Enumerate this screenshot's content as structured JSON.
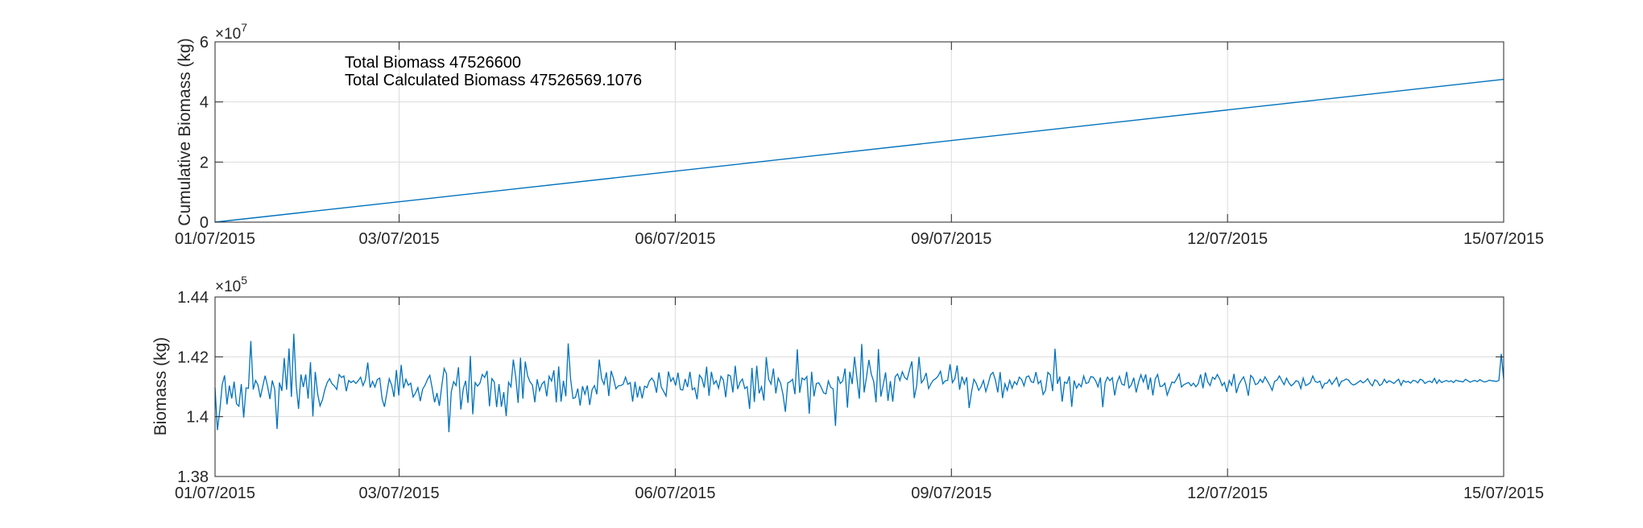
{
  "colors": {
    "line": "#0072BD",
    "axis": "#262626",
    "grid": "#dcdcdc"
  },
  "x_ticks": [
    "01/07/2015",
    "03/07/2015",
    "06/07/2015",
    "09/07/2015",
    "12/07/2015",
    "15/07/2015"
  ],
  "chart_data": [
    {
      "type": "line",
      "ylabel": "Cumulative Biomass (kg)",
      "y_exponent": "×10",
      "y_exponent_power": "7",
      "yticks": [
        "0",
        "2",
        "4",
        "6"
      ],
      "ylim": [
        0,
        6
      ],
      "xlim": [
        "01/07/2015",
        "15/07/2015"
      ],
      "grid": true,
      "annotations": [
        "Total Biomass 47526600",
        "Total Calculated Biomass 47526569.1076"
      ],
      "series": [
        {
          "x": [
            "01/07/2015",
            "15/07/2015"
          ],
          "y": [
            0,
            4.75266
          ]
        }
      ]
    },
    {
      "type": "line",
      "ylabel": "Biomass (kg)",
      "y_exponent": "×10",
      "y_exponent_power": "5",
      "yticks": [
        "1.38",
        "1.4",
        "1.42",
        "1.44"
      ],
      "ylim": [
        1.38,
        1.44
      ],
      "xlim": [
        "01/07/2015",
        "15/07/2015"
      ],
      "grid": true,
      "y_values": [
        1.4097,
        1.3955,
        1.4021,
        1.4107,
        1.4138,
        1.4041,
        1.4104,
        1.4061,
        1.4117,
        1.4043,
        1.4035,
        1.4109,
        1.3997,
        1.4096,
        1.4095,
        1.4253,
        1.4091,
        1.4121,
        1.4105,
        1.4064,
        1.4102,
        1.4137,
        1.4102,
        1.4059,
        1.4121,
        1.4091,
        1.3959,
        1.4114,
        1.4086,
        1.4196,
        1.409,
        1.4228,
        1.4066,
        1.4277,
        1.4106,
        1.4026,
        1.4141,
        1.4099,
        1.4141,
        1.406,
        1.4182,
        1.4001,
        1.415,
        1.4076,
        1.4036,
        1.4056,
        1.409,
        1.4114,
        1.4127,
        1.411,
        1.4103,
        1.4091,
        1.4141,
        1.4131,
        1.4136,
        1.4085,
        1.4121,
        1.4114,
        1.412,
        1.4111,
        1.412,
        1.4132,
        1.4104,
        1.4123,
        1.4181,
        1.4097,
        1.4118,
        1.4099,
        1.4124,
        1.4129,
        1.406,
        1.4033,
        1.4079,
        1.4127,
        1.4106,
        1.4066,
        1.4156,
        1.4071,
        1.4173,
        1.4095,
        1.4125,
        1.4105,
        1.4112,
        1.4066,
        1.4079,
        1.4097,
        1.4052,
        1.4092,
        1.4105,
        1.4124,
        1.4138,
        1.4095,
        1.4048,
        1.4079,
        1.4036,
        1.4102,
        1.4161,
        1.4143,
        1.3948,
        1.4084,
        1.4117,
        1.4104,
        1.4165,
        1.4024,
        1.4092,
        1.412,
        1.4046,
        1.4203,
        1.4008,
        1.4114,
        1.4102,
        1.4112,
        1.4141,
        1.4131,
        1.4153,
        1.4035,
        1.4127,
        1.4116,
        1.4032,
        1.4109,
        1.4033,
        1.4082,
        1.4002,
        1.4115,
        1.41,
        1.4191,
        1.4133,
        1.4046,
        1.4197,
        1.406,
        1.4184,
        1.4136,
        1.4116,
        1.4106,
        1.4048,
        1.4125,
        1.4087,
        1.4109,
        1.4118,
        1.4068,
        1.4135,
        1.4119,
        1.4155,
        1.4048,
        1.4168,
        1.405,
        1.412,
        1.4068,
        1.4245,
        1.4126,
        1.4061,
        1.4064,
        1.4094,
        1.4037,
        1.4102,
        1.4075,
        1.4104,
        1.4039,
        1.409,
        1.4104,
        1.4075,
        1.4191,
        1.4127,
        1.4108,
        1.4148,
        1.4069,
        1.4153,
        1.4127,
        1.4093,
        1.4103,
        1.4104,
        1.4108,
        1.4132,
        1.4108,
        1.4114,
        1.405,
        1.4117,
        1.4064,
        1.4102,
        1.4061,
        1.4102,
        1.4097,
        1.4119,
        1.4129,
        1.4117,
        1.408,
        1.4148,
        1.4099,
        1.4084,
        1.4069,
        1.4151,
        1.4118,
        1.413,
        1.4104,
        1.4147,
        1.4091,
        1.4089,
        1.4126,
        1.4099,
        1.415,
        1.409,
        1.4096,
        1.4058,
        1.4139,
        1.4128,
        1.4097,
        1.4167,
        1.407,
        1.415,
        1.4109,
        1.412,
        1.4095,
        1.4135,
        1.4123,
        1.4065,
        1.414,
        1.4136,
        1.4081,
        1.417,
        1.4092,
        1.4115,
        1.4126,
        1.4094,
        1.41,
        1.4026,
        1.4163,
        1.4049,
        1.417,
        1.4078,
        1.41,
        1.4054,
        1.4199,
        1.4125,
        1.4109,
        1.4161,
        1.4078,
        1.4129,
        1.4112,
        1.4074,
        1.4016,
        1.4113,
        1.4117,
        1.4125,
        1.4075,
        1.4225,
        1.408,
        1.4129,
        1.4123,
        1.4134,
        1.401,
        1.415,
        1.4068,
        1.4111,
        1.4113,
        1.4098,
        1.408,
        1.4076,
        1.4119,
        1.4098,
        1.4093,
        1.3969,
        1.4135,
        1.4111,
        1.4119,
        1.4161,
        1.403,
        1.415,
        1.4109,
        1.42,
        1.4127,
        1.406,
        1.4243,
        1.4081,
        1.4133,
        1.419,
        1.4142,
        1.4118,
        1.4048,
        1.4226,
        1.4067,
        1.4106,
        1.4148,
        1.4053,
        1.4119,
        1.405,
        1.4133,
        1.4143,
        1.4121,
        1.415,
        1.4131,
        1.4124,
        1.4155,
        1.4185,
        1.4062,
        1.4103,
        1.42,
        1.4113,
        1.4124,
        1.4146,
        1.4094,
        1.411,
        1.4122,
        1.4127,
        1.4136,
        1.4152,
        1.411,
        1.412,
        1.4121,
        1.4175,
        1.4114,
        1.4127,
        1.4171,
        1.409,
        1.4134,
        1.4109,
        1.4132,
        1.4029,
        1.4082,
        1.4125,
        1.4111,
        1.4088,
        1.41,
        1.4121,
        1.4084,
        1.411,
        1.414,
        1.4148,
        1.4123,
        1.4081,
        1.4149,
        1.4062,
        1.411,
        1.4088,
        1.4121,
        1.4095,
        1.4117,
        1.4107,
        1.4132,
        1.4124,
        1.4103,
        1.4133,
        1.4136,
        1.4117,
        1.4114,
        1.4149,
        1.411,
        1.412,
        1.4074,
        1.4088,
        1.4148,
        1.414,
        1.4085,
        1.4227,
        1.411,
        1.4134,
        1.405,
        1.4116,
        1.4111,
        1.4135,
        1.4033,
        1.4121,
        1.4095,
        1.411,
        1.41,
        1.4136,
        1.4111,
        1.4114,
        1.4134,
        1.4132,
        1.412,
        1.41,
        1.4131,
        1.4032,
        1.4114,
        1.4132,
        1.412,
        1.413,
        1.4071,
        1.4115,
        1.4135,
        1.4109,
        1.4105,
        1.415,
        1.4096,
        1.4107,
        1.413,
        1.4081,
        1.4115,
        1.414,
        1.4116,
        1.4141,
        1.409,
        1.4131,
        1.4071,
        1.4126,
        1.4141,
        1.4101,
        1.4102,
        1.4112,
        1.4072,
        1.4094,
        1.4116,
        1.4113,
        1.4127,
        1.4143,
        1.4099,
        1.4107,
        1.4111,
        1.4114,
        1.4103,
        1.4112,
        1.41,
        1.411,
        1.4141,
        1.4095,
        1.4148,
        1.4116,
        1.4104,
        1.4132,
        1.4125,
        1.4141,
        1.4126,
        1.4104,
        1.4114,
        1.4083,
        1.4121,
        1.4105,
        1.4143,
        1.4079,
        1.4107,
        1.4121,
        1.4133,
        1.4109,
        1.407,
        1.4138,
        1.4129,
        1.4107,
        1.4111,
        1.4125,
        1.4114,
        1.4133,
        1.4119,
        1.4105,
        1.4088,
        1.4118,
        1.4122,
        1.4136,
        1.4121,
        1.4107,
        1.4129,
        1.4113,
        1.4103,
        1.411,
        1.412,
        1.4117,
        1.4094,
        1.4129,
        1.4104,
        1.4108,
        1.4114,
        1.4136,
        1.4118,
        1.4114,
        1.4119,
        1.4095,
        1.4111,
        1.4112,
        1.4124,
        1.4108,
        1.4119,
        1.4131,
        1.4102,
        1.4118,
        1.4121,
        1.4126,
        1.4122,
        1.4111,
        1.4106,
        1.4109,
        1.4115,
        1.4121,
        1.4113,
        1.4118,
        1.4127,
        1.4112,
        1.4103,
        1.4123,
        1.4119,
        1.4104,
        1.4109,
        1.4125,
        1.4113,
        1.412,
        1.4116,
        1.4111,
        1.4119,
        1.4125,
        1.4105,
        1.4121,
        1.4115,
        1.4118,
        1.4112,
        1.4121,
        1.412,
        1.4113,
        1.4125,
        1.4122,
        1.4111,
        1.4116,
        1.4119,
        1.4114,
        1.4128,
        1.4111,
        1.4123,
        1.4114,
        1.4118,
        1.4121,
        1.4117,
        1.412,
        1.4114,
        1.4122,
        1.4119,
        1.4118,
        1.4116,
        1.4125,
        1.412,
        1.4115,
        1.4119,
        1.4121,
        1.4117,
        1.4124,
        1.4119,
        1.4116,
        1.4118,
        1.4122,
        1.412,
        1.4119,
        1.4118,
        1.4121,
        1.421,
        1.4125
      ]
    }
  ]
}
